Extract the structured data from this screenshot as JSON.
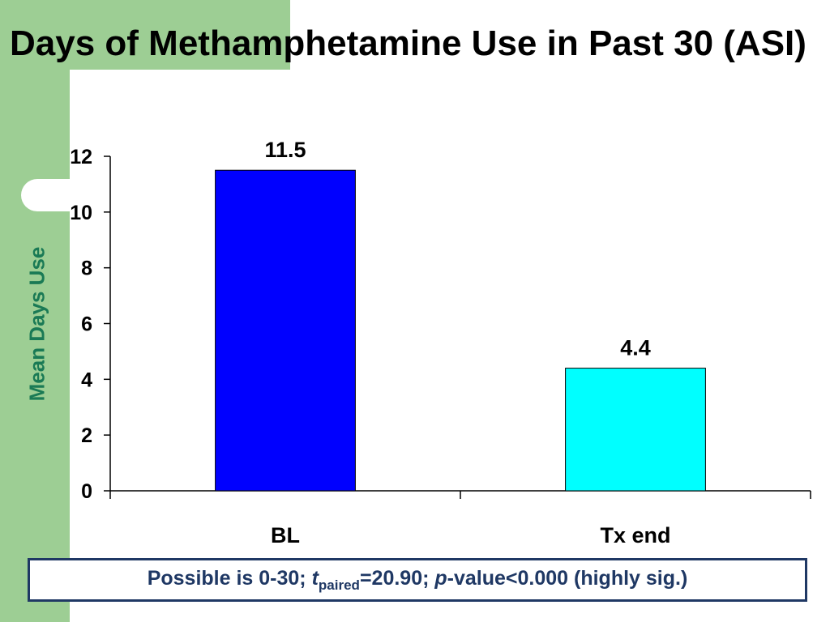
{
  "slide": {
    "title": "Days of Methamphetamine Use in Past 30 (ASI)",
    "colors": {
      "sidebar": "#9dce94",
      "ylabel": "#1a7a55",
      "note": "#1f3864"
    }
  },
  "chart_data": {
    "type": "bar",
    "categories": [
      "BL",
      "Tx end"
    ],
    "values": [
      11.5,
      4.4
    ],
    "data_labels": [
      "11.5",
      "4.4"
    ],
    "bar_colors": [
      "#0000ff",
      "#00ffff"
    ],
    "ylabel": "Mean Days Use",
    "xlabel": "",
    "ylim": [
      0,
      12
    ],
    "yticks": [
      0,
      2,
      4,
      6,
      8,
      10,
      12
    ],
    "grid": false,
    "legend": "none"
  },
  "note": {
    "prefix": "Possible is 0-30; ",
    "t": "t",
    "t_sub": "paired",
    "t_value": "=20.90; ",
    "p": "p",
    "p_rest": "-value<0.000 (highly sig.)"
  }
}
